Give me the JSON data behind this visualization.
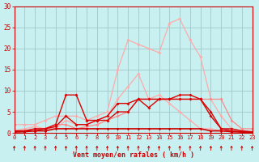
{
  "bg_color": "#c8f0f0",
  "grid_color": "#a0c8c8",
  "xlabel": "Vent moyen/en rafales ( km/h )",
  "xlabel_color": "#cc0000",
  "xlim": [
    0,
    23
  ],
  "ylim": [
    0,
    30
  ],
  "yticks": [
    0,
    5,
    10,
    15,
    20,
    25,
    30
  ],
  "xticks": [
    0,
    1,
    2,
    3,
    4,
    5,
    6,
    7,
    8,
    9,
    10,
    11,
    12,
    13,
    14,
    15,
    16,
    17,
    18,
    19,
    20,
    21,
    22,
    23
  ],
  "lines": [
    {
      "x": [
        0,
        1,
        2,
        3,
        4,
        5,
        6,
        7,
        8,
        9,
        10,
        11,
        12,
        13,
        14,
        15,
        16,
        17,
        18,
        19,
        20,
        21,
        22,
        23
      ],
      "y": [
        2,
        2,
        2,
        3,
        4,
        4,
        4,
        3,
        4,
        5,
        15,
        22,
        21,
        20,
        19,
        26,
        27,
        22,
        18,
        8,
        4,
        1,
        0.5,
        0.2
      ],
      "color": "#ffaaaa",
      "lw": 0.9,
      "marker": "D",
      "ms": 2.0
    },
    {
      "x": [
        0,
        1,
        2,
        3,
        4,
        5,
        6,
        7,
        8,
        9,
        10,
        11,
        12,
        13,
        14,
        15,
        16,
        17,
        18,
        19,
        20,
        21,
        22,
        23
      ],
      "y": [
        0.5,
        1,
        1.5,
        1,
        1,
        3,
        2,
        2,
        3,
        4,
        8,
        11,
        14,
        8,
        9,
        7,
        5,
        3,
        1,
        1,
        0.5,
        0.3,
        0.2,
        0.1
      ],
      "color": "#ffaaaa",
      "lw": 0.9,
      "marker": "D",
      "ms": 2.0
    },
    {
      "x": [
        0,
        1,
        2,
        3,
        4,
        5,
        6,
        7,
        8,
        9,
        10,
        11,
        12,
        13,
        14,
        15,
        16,
        17,
        18,
        19,
        20,
        21,
        22,
        23
      ],
      "y": [
        0.3,
        0.5,
        1,
        1,
        2,
        2,
        1,
        1.5,
        2,
        3,
        4,
        5,
        8,
        8,
        8,
        8,
        8,
        8,
        8,
        8,
        8,
        3,
        1,
        1
      ],
      "color": "#ff8888",
      "lw": 0.9,
      "marker": "D",
      "ms": 2.0
    },
    {
      "x": [
        0,
        1,
        2,
        3,
        4,
        5,
        6,
        7,
        8,
        9,
        10,
        11,
        12,
        13,
        14,
        15,
        16,
        17,
        18,
        19,
        20,
        21,
        22,
        23
      ],
      "y": [
        0.5,
        0.5,
        1,
        1,
        2,
        9,
        9,
        3,
        3,
        3,
        5,
        5,
        8,
        6,
        8,
        8,
        9,
        9,
        8,
        5,
        1,
        1,
        0.5,
        0.3
      ],
      "color": "#dd0000",
      "lw": 1.0,
      "marker": "D",
      "ms": 2.0
    },
    {
      "x": [
        0,
        1,
        2,
        3,
        4,
        5,
        6,
        7,
        8,
        9,
        10,
        11,
        12,
        13,
        14,
        15,
        16,
        17,
        18,
        19,
        20,
        21,
        22,
        23
      ],
      "y": [
        0.5,
        0.5,
        0.5,
        1,
        1.5,
        4,
        2,
        2,
        3,
        4,
        7,
        7,
        8,
        8,
        8,
        8,
        8,
        8,
        8,
        4,
        1,
        0.5,
        0.3,
        0.2
      ],
      "color": "#dd0000",
      "lw": 1.0,
      "marker": "D",
      "ms": 2.0
    },
    {
      "x": [
        0,
        1,
        2,
        3,
        4,
        5,
        6,
        7,
        8,
        9,
        10,
        11,
        12,
        13,
        14,
        15,
        16,
        17,
        18,
        19,
        20,
        21,
        22,
        23
      ],
      "y": [
        0.2,
        0.3,
        0.5,
        0.5,
        1,
        1,
        1,
        1,
        1,
        1,
        1,
        1,
        1,
        1,
        1,
        1,
        1,
        1,
        1,
        0.5,
        0.5,
        0.3,
        0.2,
        0.1
      ],
      "color": "#cc0000",
      "lw": 1.2,
      "marker": "D",
      "ms": 1.8
    }
  ],
  "tick_color": "#cc0000",
  "label_color": "#cc0000",
  "axis_color": "#cc0000"
}
